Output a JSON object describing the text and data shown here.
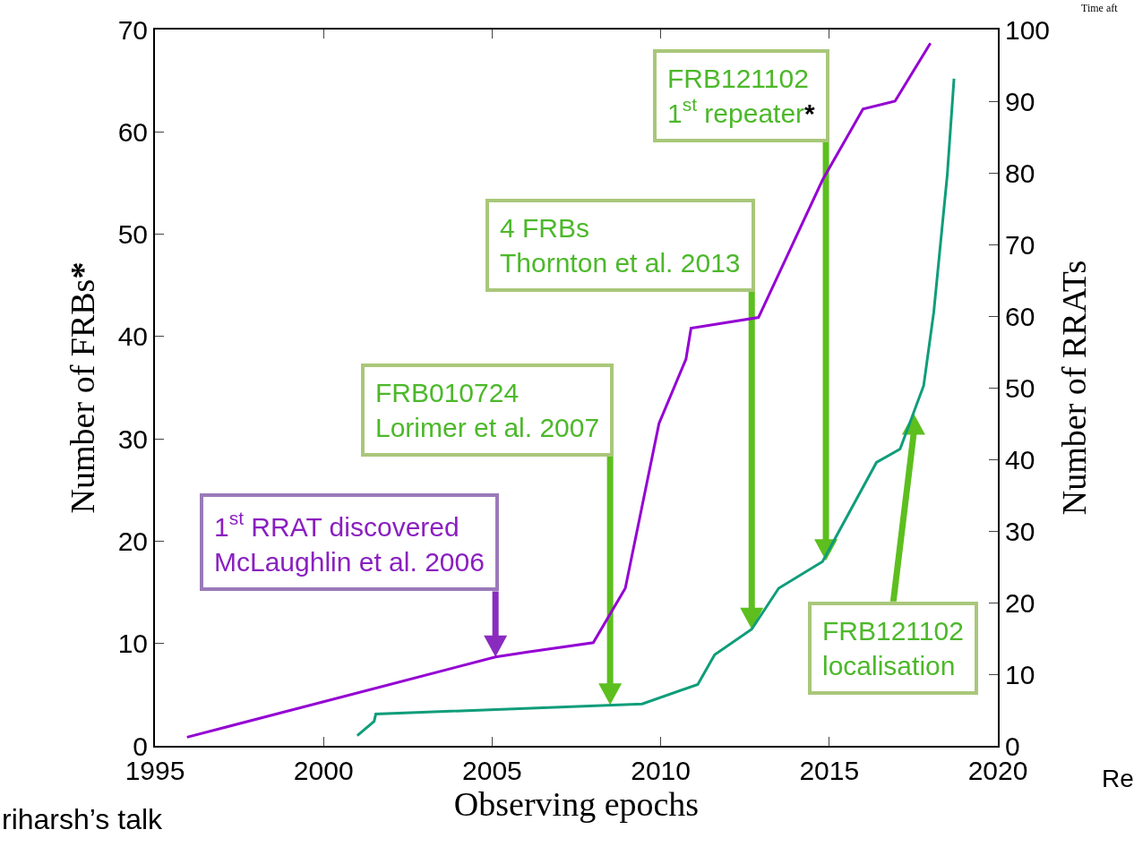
{
  "chart_data": {
    "type": "line",
    "xlabel": "Observing epochs",
    "ylabel": "Number of FRBs*",
    "y2label": "Number of RRATs",
    "xlim": [
      1995,
      2020
    ],
    "xticks": [
      1995,
      2000,
      2005,
      2010,
      2015,
      2020
    ],
    "ylim": [
      0,
      70
    ],
    "yticks": [
      0,
      10,
      20,
      30,
      40,
      50,
      60,
      70
    ],
    "y2lim": [
      0,
      100
    ],
    "y2ticks": [
      0,
      10,
      20,
      30,
      40,
      50,
      60,
      70,
      80,
      90,
      100
    ],
    "grid": false,
    "marker": "none",
    "line_style": "solid",
    "series": [
      {
        "color": "#9400d3",
        "axis": "y2",
        "x": [
          1995.95,
          2005.1,
          2006.05,
          2008.0,
          2008.95,
          2009.95,
          2010.75,
          2010.9,
          2012.9,
          2014.8,
          2016.0,
          2016.95,
          2018.0
        ],
        "values": [
          1.2,
          12.4,
          13.1,
          14.4,
          22,
          45,
          54,
          58.3,
          59.8,
          79,
          88.9,
          90,
          98.1
        ]
      },
      {
        "color": "#0f9d7a",
        "x": [
          2001.0,
          2001.5,
          2001.55,
          2009.45,
          2011.1,
          2011.6,
          2012.7,
          2013.5,
          2014.8,
          2016.4,
          2017.1,
          2017.8,
          2018.1,
          2018.5,
          2018.7
        ],
        "values": [
          1.0,
          2.4,
          3.1,
          4.1,
          6.0,
          8.9,
          11.4,
          15.4,
          18.0,
          27.7,
          29.0,
          35.2,
          42.4,
          55.8,
          65.2
        ]
      }
    ],
    "annotations": [
      "1$^{st}$ RRAT discovered\nMcLaughlin et al. 2006",
      "FRB010724\nLorimer et al. 2007",
      "4 FRBs\nThornton et al. 2013",
      "FRB121102\n1$^{st}$ repeater*",
      "FRB121102\nlocalisation",
      "riharsh’s talk",
      "Re",
      "Time aft"
    ]
  }
}
